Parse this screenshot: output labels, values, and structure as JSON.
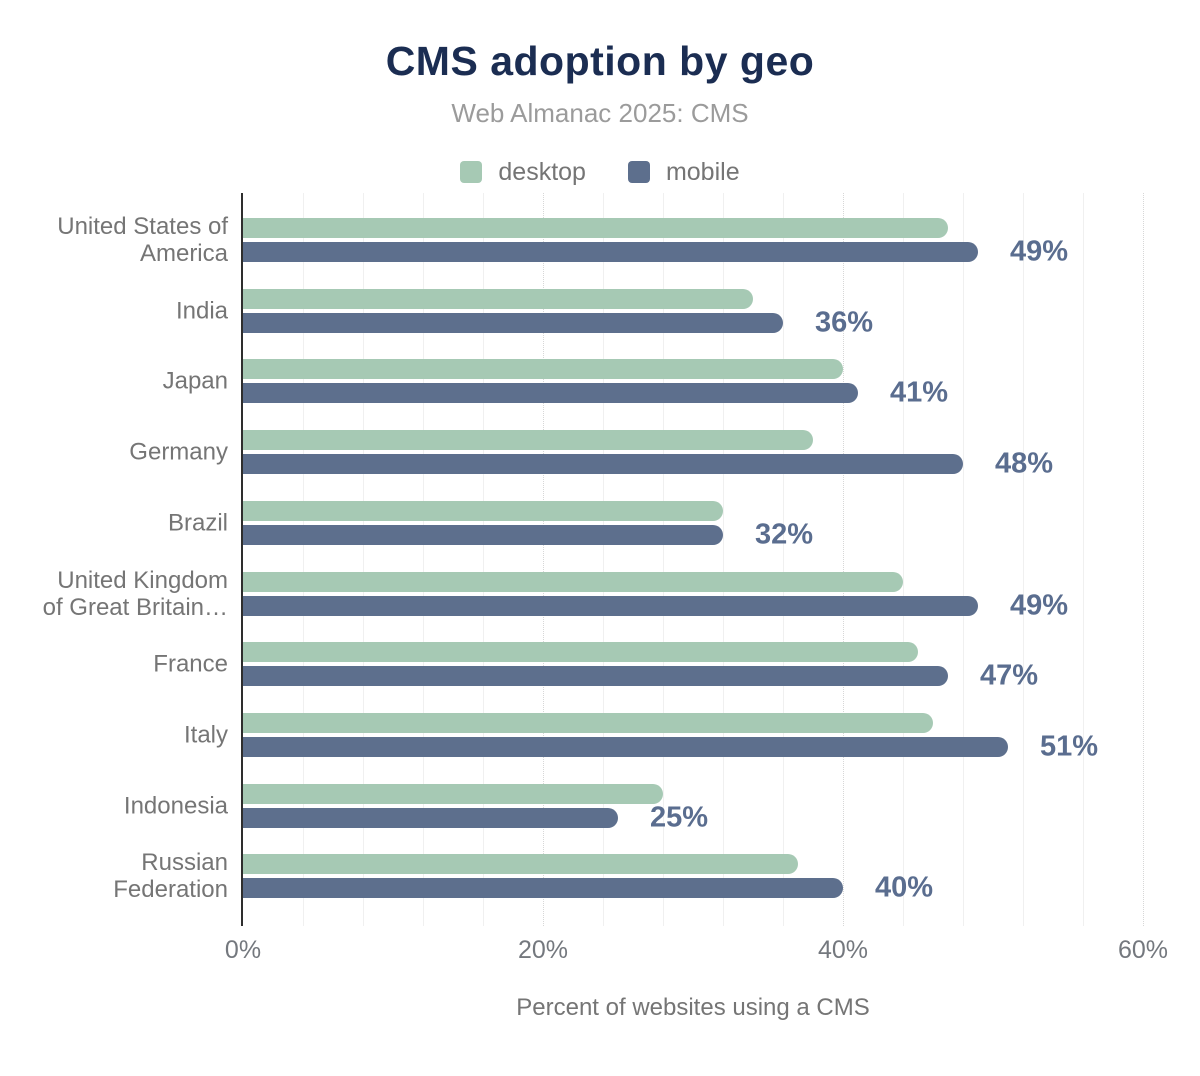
{
  "title": "CMS adoption by geo",
  "subtitle": "Web Almanac 2025: CMS",
  "legend": [
    {
      "label": "desktop",
      "color": "#a6c9b4"
    },
    {
      "label": "mobile",
      "color": "#5d6f8d"
    }
  ],
  "colors": {
    "title": "#1b2d52",
    "subtitle": "#9b9b9b",
    "desktop_bar": "#a6c9b4",
    "mobile_bar": "#5d6f8d",
    "value_label": "#5a6d8f",
    "axis_text": "#757575",
    "axis_line": "#2e2e2e",
    "grid_minor": "#f0f0f0",
    "grid_major": "#d7d7d7"
  },
  "chart_data": {
    "type": "bar",
    "orientation": "horizontal",
    "title": "CMS adoption by geo",
    "subtitle": "Web Almanac 2025: CMS",
    "xlabel": "Percent of websites using a CMS",
    "ylabel": "",
    "xlim": [
      0,
      62
    ],
    "grid": {
      "minor_step_pct": 4,
      "major_step_pct": 20,
      "major_style": "dotted"
    },
    "legend_position": "top-center",
    "categories": [
      "United States of America",
      "India",
      "Japan",
      "Germany",
      "Brazil",
      "United Kingdom of Great Britain…",
      "France",
      "Italy",
      "Indonesia",
      "Russian Federation"
    ],
    "category_label_lines": [
      [
        "United States of",
        "America"
      ],
      [
        "India"
      ],
      [
        "Japan"
      ],
      [
        "Germany"
      ],
      [
        "Brazil"
      ],
      [
        "United Kingdom",
        "of Great Britain…"
      ],
      [
        "France"
      ],
      [
        "Italy"
      ],
      [
        "Indonesia"
      ],
      [
        "Russian",
        "Federation"
      ]
    ],
    "series": [
      {
        "name": "desktop",
        "color": "#a6c9b4",
        "values": [
          47,
          34,
          40,
          38,
          32,
          44,
          45,
          46,
          28,
          37
        ]
      },
      {
        "name": "mobile",
        "color": "#5d6f8d",
        "values": [
          49,
          36,
          41,
          48,
          32,
          49,
          47,
          51,
          25,
          40
        ]
      }
    ],
    "value_labels": {
      "labeled_series": "mobile",
      "labels": [
        "49%",
        "36%",
        "41%",
        "48%",
        "32%",
        "49%",
        "47%",
        "51%",
        "25%",
        "40%"
      ]
    },
    "x_ticks": [
      {
        "value": 0,
        "label": "0%"
      },
      {
        "value": 20,
        "label": "20%"
      },
      {
        "value": 40,
        "label": "40%"
      },
      {
        "value": 60,
        "label": "60%"
      }
    ]
  }
}
